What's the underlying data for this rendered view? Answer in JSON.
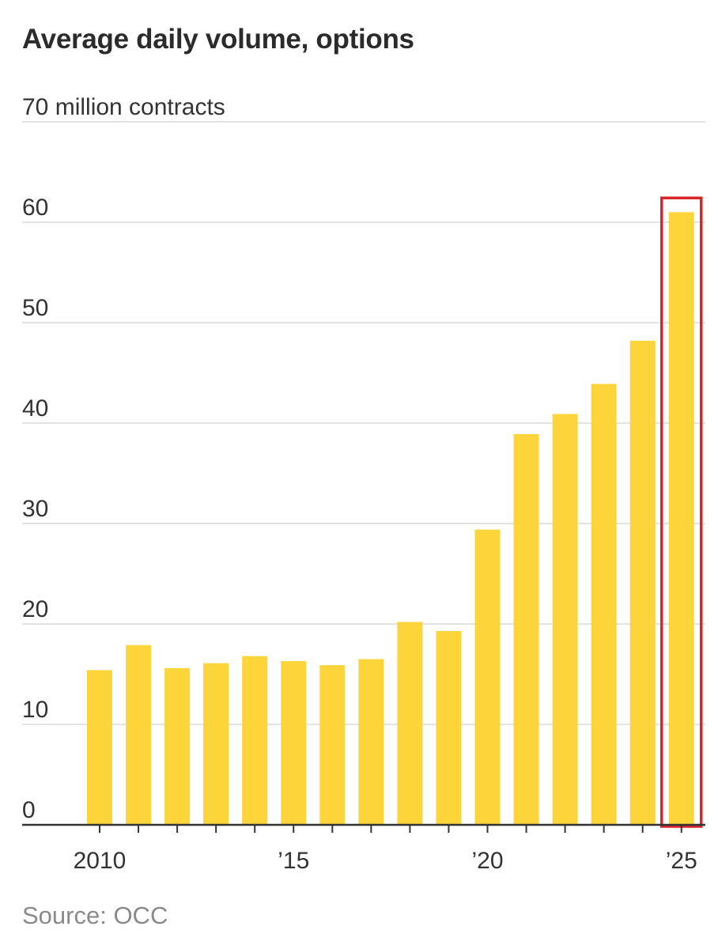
{
  "chart_data": {
    "type": "bar",
    "title": "Average daily volume, options",
    "ylabel": "70 million contracts",
    "ylim": [
      0,
      70
    ],
    "y_ticks": [
      0,
      10,
      20,
      30,
      40,
      50,
      60
    ],
    "top_tick_label": "70 million contracts",
    "x": [
      2010,
      2011,
      2012,
      2013,
      2014,
      2015,
      2016,
      2017,
      2018,
      2019,
      2020,
      2021,
      2022,
      2023,
      2024,
      2025
    ],
    "values": [
      15.4,
      17.9,
      15.6,
      16.1,
      16.8,
      16.3,
      15.9,
      16.5,
      20.2,
      19.3,
      29.4,
      38.9,
      40.9,
      43.9,
      48.2,
      61.0
    ],
    "x_tick_labels": [
      {
        "x": 2010,
        "label": "2010"
      },
      {
        "x": 2015,
        "label": "’15"
      },
      {
        "x": 2020,
        "label": "’20"
      },
      {
        "x": 2025,
        "label": "’25"
      }
    ],
    "highlight": {
      "x": 2025,
      "color": "#d9242b"
    },
    "bar_color": "#fdd53b",
    "grid": true
  },
  "source": "Source: OCC"
}
